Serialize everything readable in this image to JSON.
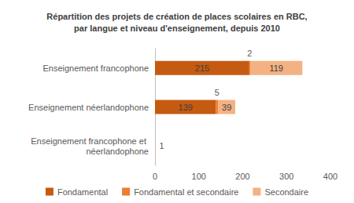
{
  "chart_data": {
    "type": "bar",
    "title": "Répartition des projets de création de places scolaires en RBC,\npar langue et niveau d'enseignement, depuis 2010",
    "orientation": "horizontal",
    "stacked": true,
    "data_labels": true,
    "grid": false,
    "legend": "bottom",
    "categories": [
      "Enseignement francophone",
      "Enseignement néerlandophone",
      "Enseignement francophone et néerlandophone"
    ],
    "series": [
      {
        "name": "Fondamental",
        "color": "#c55a11",
        "values": [
          215,
          139,
          null
        ]
      },
      {
        "name": "Fondamental et secondaire",
        "color": "#ed7d31",
        "values": [
          2,
          5,
          null
        ]
      },
      {
        "name": "Secondaire",
        "color": "#f4b183",
        "values": [
          119,
          39,
          1
        ]
      }
    ],
    "xlim": [
      0,
      400
    ],
    "xticks": [
      0,
      100,
      200,
      300,
      400
    ]
  }
}
